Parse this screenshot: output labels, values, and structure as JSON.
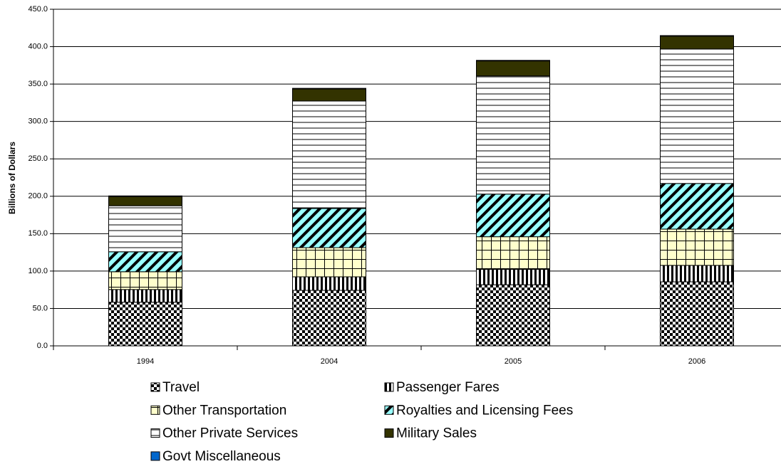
{
  "chart_data": {
    "type": "stacked_bar",
    "y_label": "Billions of Dollars",
    "categories": [
      "1994",
      "2004",
      "2005",
      "2006"
    ],
    "series": [
      {
        "name": "Travel",
        "color": "#000000",
        "pattern": "checker",
        "values": [
          58.4,
          74.2,
          81.7,
          85.6
        ]
      },
      {
        "name": "Passenger Fares",
        "color": "#000000",
        "pattern": "vertical",
        "values": [
          16.9,
          18.1,
          20.6,
          22.0
        ]
      },
      {
        "name": "Other Transportation",
        "color": "#ffffcc",
        "pattern": "grid",
        "values": [
          23.8,
          39.0,
          43.6,
          48.5
        ]
      },
      {
        "name": "Royalties and Licensing Fees",
        "color": "#99ffff",
        "pattern": "diagonal",
        "values": [
          26.7,
          52.3,
          57.0,
          61.0
        ]
      },
      {
        "name": "Other Private Services",
        "color": "#ffffff",
        "pattern": "horizontal",
        "values": [
          61.5,
          143.7,
          158.0,
          179.7
        ]
      },
      {
        "name": "Military Sales",
        "color": "#333300",
        "pattern": "solid",
        "values": [
          12.4,
          16.2,
          20.0,
          17.3
        ]
      },
      {
        "name": "Govt Miscellaneous",
        "color": "#0066cc",
        "pattern": "solid",
        "values": [
          0.8,
          0.8,
          0.8,
          0.7
        ]
      }
    ],
    "ylim": [
      0,
      450
    ],
    "yticks": [
      {
        "value": 0,
        "label": "0.0"
      },
      {
        "value": 50,
        "label": "50.0"
      },
      {
        "value": 100,
        "label": "100.0"
      },
      {
        "value": 150,
        "label": "150.0"
      },
      {
        "value": 200,
        "label": "200.0"
      },
      {
        "value": 250,
        "label": "250.0"
      },
      {
        "value": 300,
        "label": "300.0"
      },
      {
        "value": 350,
        "label": "350.0"
      },
      {
        "value": 400,
        "label": "400.0"
      },
      {
        "value": 450,
        "label": "450.0"
      }
    ],
    "grid": true
  }
}
